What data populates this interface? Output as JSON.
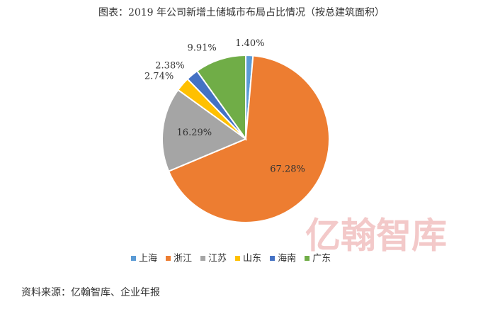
{
  "chart_data": {
    "type": "pie",
    "title": "图表：2019 年公司新增土储城市布局占比情况（按总建筑面积）",
    "categories": [
      "上海",
      "浙江",
      "江苏",
      "山东",
      "海南",
      "广东"
    ],
    "values": [
      1.4,
      67.28,
      16.29,
      2.74,
      2.38,
      9.91
    ],
    "value_labels": [
      "1.40%",
      "67.28%",
      "16.29%",
      "2.74%",
      "2.38%",
      "9.91%"
    ],
    "colors": [
      "#5b9bd5",
      "#ed7d31",
      "#a5a5a5",
      "#ffc000",
      "#4472c4",
      "#70ad47"
    ],
    "legend": "bottom",
    "source": "资料来源：亿翰智库、企业年报",
    "watermark": "亿翰智库"
  }
}
